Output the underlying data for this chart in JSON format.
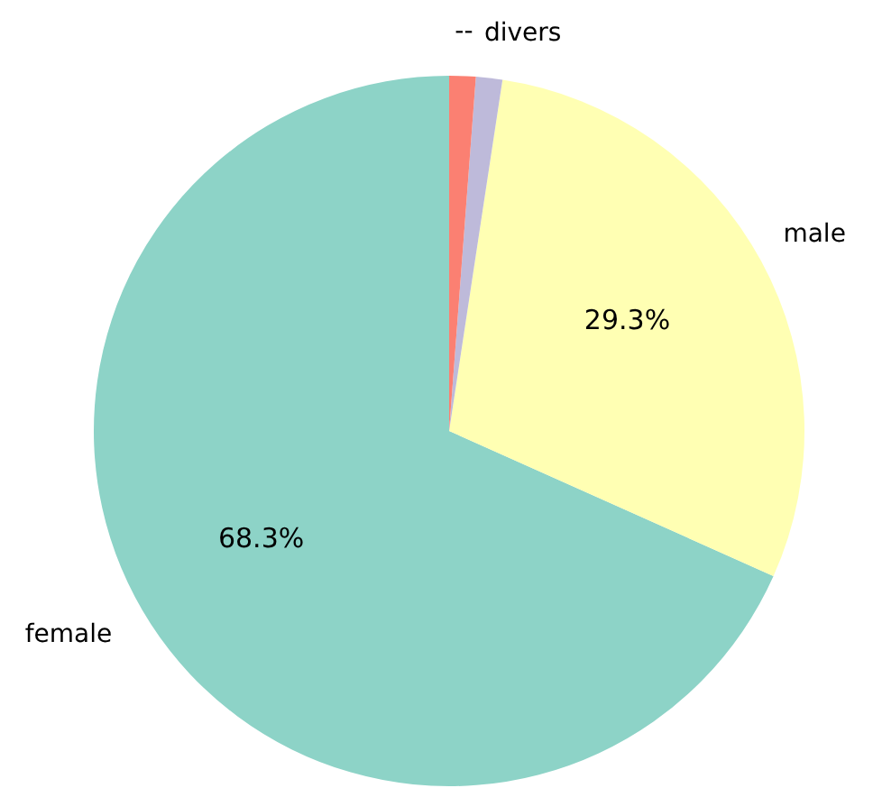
{
  "chart_data": {
    "type": "pie",
    "categories": [
      "female",
      "male",
      "divers",
      "--"
    ],
    "values": [
      68.3,
      29.3,
      1.2,
      1.2
    ],
    "colors": [
      "#8dd3c7",
      "#ffffb3",
      "#bebada",
      "#fb8072"
    ],
    "value_labels": [
      "68.3%",
      "29.3%",
      null,
      null
    ],
    "legend": false
  }
}
